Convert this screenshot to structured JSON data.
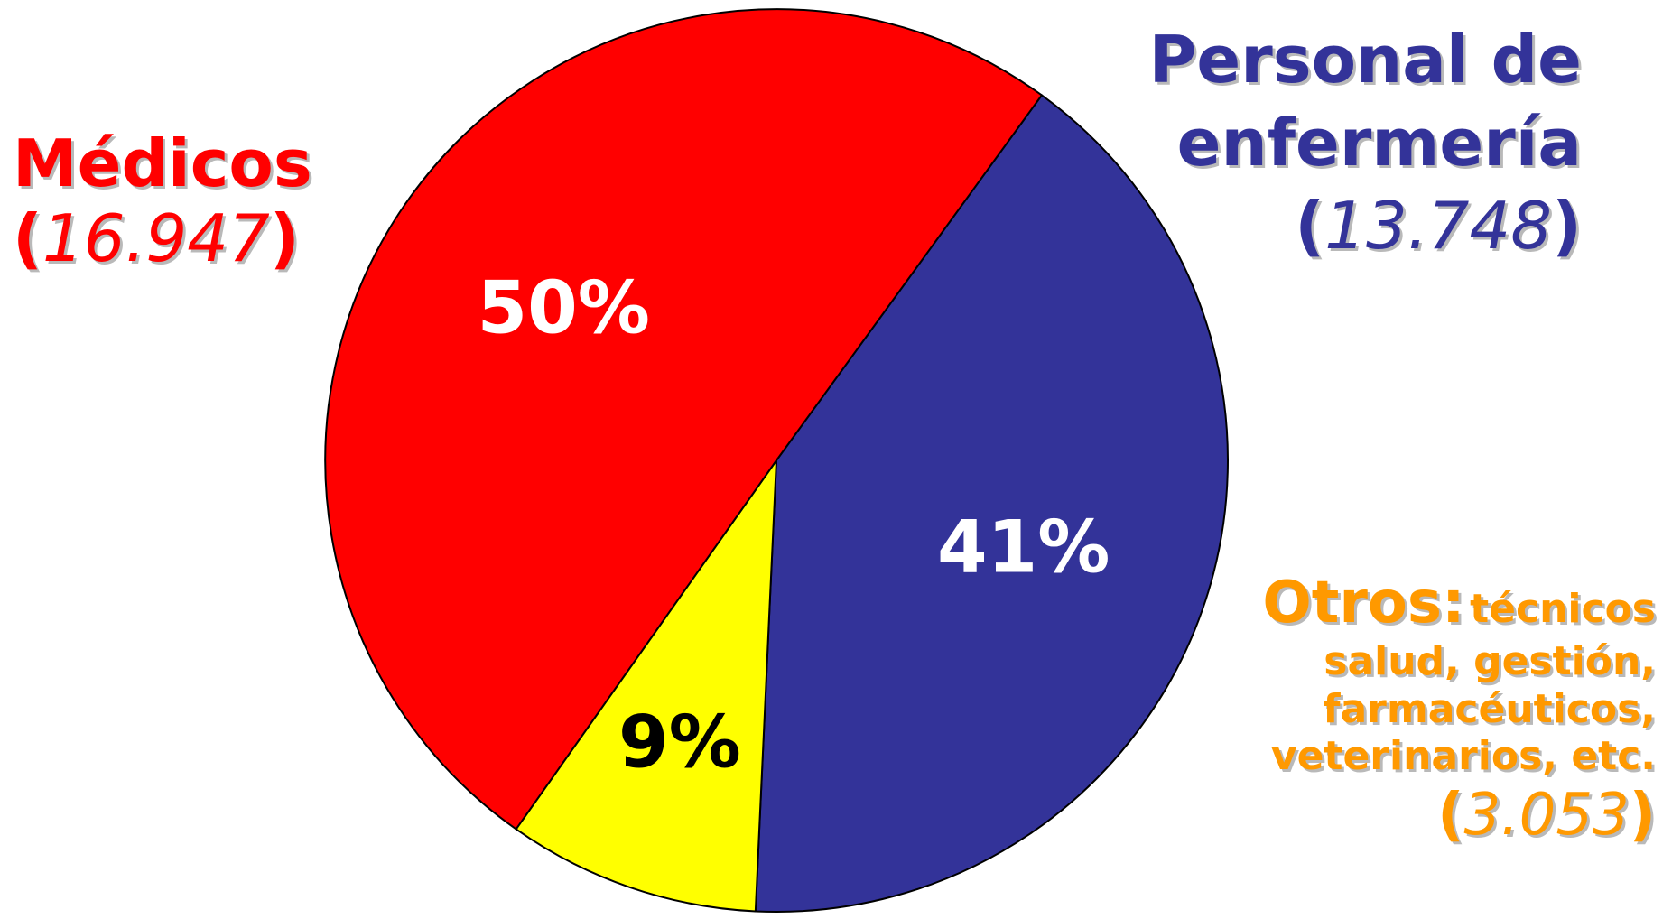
{
  "colors": {
    "medicos": "#ff0000",
    "enfermeria": "#333399",
    "otros_slice": "#ffff00",
    "otros_text": "#ff9900",
    "outline": "#000000",
    "pct_light": "#ffffff",
    "pct_dark": "#000000"
  },
  "labels": {
    "medicos": {
      "name": "Médicos",
      "open": "(",
      "count": "16.947",
      "close": ")"
    },
    "enfermeria": {
      "name_line1": "Personal de",
      "name_line2": "enfermería",
      "open": "(",
      "count": "13.748",
      "close": ")"
    },
    "otros": {
      "head": "Otros:",
      "desc1": "técnicos",
      "desc2": "salud, gestión,",
      "desc3": "farmacéuticos,",
      "desc4": "veterinarios, etc.",
      "open": "(",
      "count": "3.053",
      "close": ")"
    }
  },
  "chart_data": {
    "type": "pie",
    "start_angle_deg": -54,
    "direction": "clockwise",
    "slices": [
      {
        "key": "enfermeria",
        "label": "Personal de enfermería",
        "value": 13748,
        "percent_label": "41%",
        "color": "#333399",
        "pct_text_color": "#ffffff"
      },
      {
        "key": "otros",
        "label": "Otros: técnicos salud, gestión, farmacéuticos, veterinarios, etc.",
        "value": 3053,
        "percent_label": "9%",
        "color": "#ffff00",
        "pct_text_color": "#000000"
      },
      {
        "key": "medicos",
        "label": "Médicos",
        "value": 16947,
        "percent_label": "50%",
        "color": "#ff0000",
        "pct_text_color": "#ffffff"
      }
    ]
  }
}
